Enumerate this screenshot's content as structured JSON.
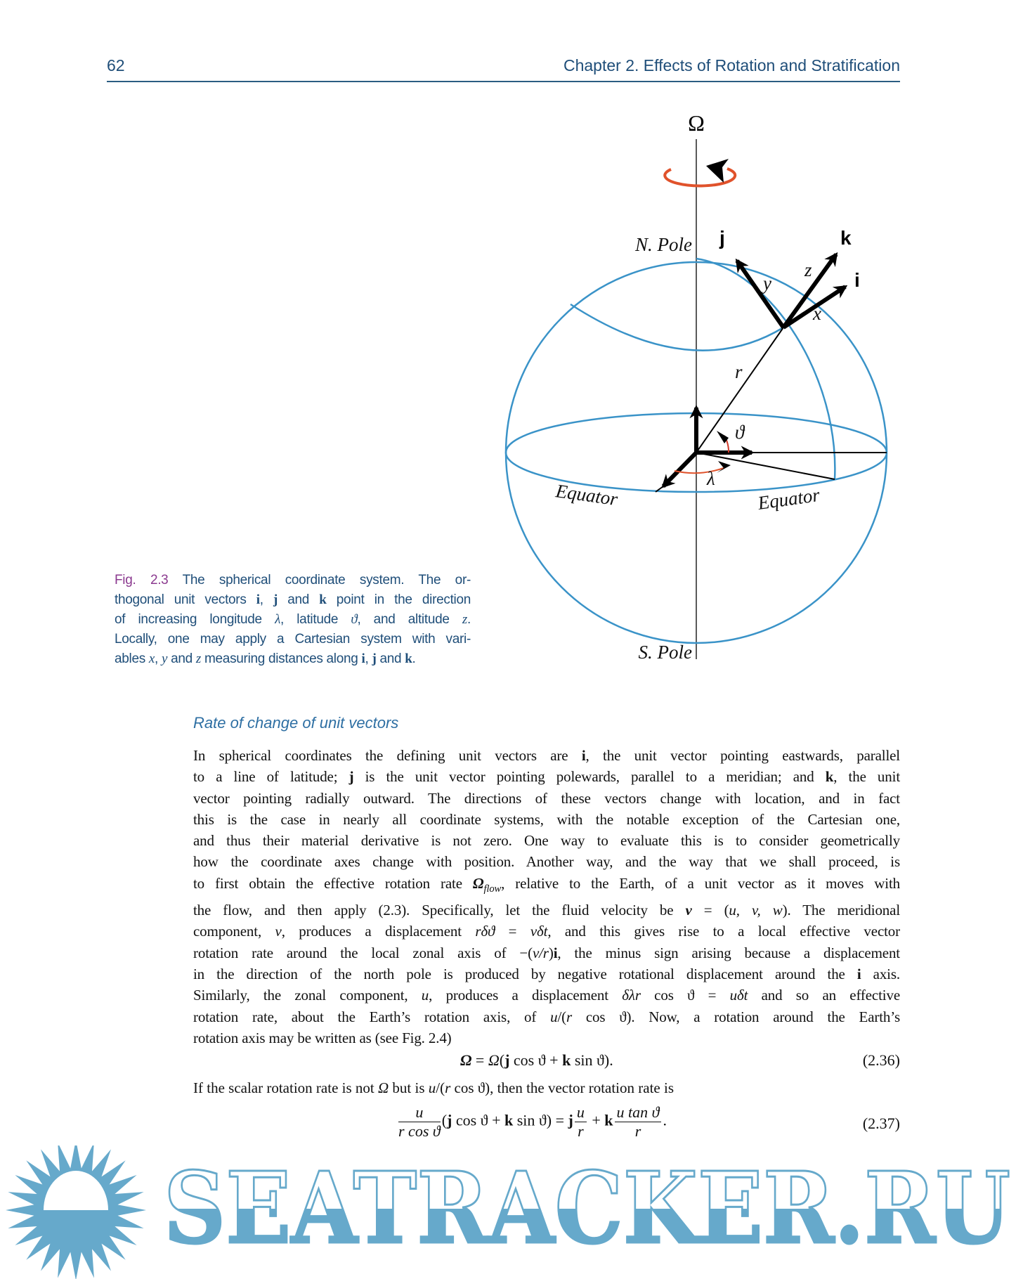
{
  "header": {
    "page_number": "62",
    "chapter_title": "Chapter 2.  Effects of Rotation and Stratification"
  },
  "figure": {
    "omega_label": "Ω",
    "n_pole_label": "N. Pole",
    "s_pole_label": "S. Pole",
    "equator_left_label": "Equator",
    "equator_right_label": "Equator",
    "vector_labels": {
      "i": "i",
      "j": "j",
      "k": "k"
    },
    "axis_labels": {
      "x": "x",
      "y": "y",
      "z": "z",
      "r": "r"
    },
    "angle_labels": {
      "latitude": "ϑ",
      "longitude": "λ"
    },
    "colors": {
      "globe": "#3a93c8",
      "rotation": "#e0522b",
      "angle_arc": "#d23a2a"
    }
  },
  "caption": {
    "lines": [
      [
        {
          "t": "Fig. 2.3",
          "s": "p"
        },
        {
          "t": "    The spherical coordinate system.  The or-",
          "s": ""
        }
      ],
      [
        {
          "t": "thogonal unit vectors ",
          "s": ""
        },
        {
          "t": "i",
          "s": "b"
        },
        {
          "t": ", ",
          "s": ""
        },
        {
          "t": "j",
          "s": "b"
        },
        {
          "t": " and ",
          "s": ""
        },
        {
          "t": "k",
          "s": "b"
        },
        {
          "t": " point in the direction",
          "s": ""
        }
      ],
      [
        {
          "t": "of increasing longitude ",
          "s": ""
        },
        {
          "t": "λ",
          "s": "i"
        },
        {
          "t": ", latitude ",
          "s": ""
        },
        {
          "t": "ϑ",
          "s": "i"
        },
        {
          "t": ", and altitude ",
          "s": ""
        },
        {
          "t": "z",
          "s": "i"
        },
        {
          "t": ".",
          "s": ""
        }
      ],
      [
        {
          "t": "Locally, one may apply a Cartesian system with vari-",
          "s": ""
        }
      ],
      [
        {
          "t": "ables ",
          "s": ""
        },
        {
          "t": "x",
          "s": "i"
        },
        {
          "t": ", ",
          "s": ""
        },
        {
          "t": "y",
          "s": "i"
        },
        {
          "t": " and ",
          "s": ""
        },
        {
          "t": "z",
          "s": "i"
        },
        {
          "t": " measuring distances along ",
          "s": ""
        },
        {
          "t": "i",
          "s": "b"
        },
        {
          "t": ", ",
          "s": ""
        },
        {
          "t": "j",
          "s": "b"
        },
        {
          "t": " and ",
          "s": ""
        },
        {
          "t": "k",
          "s": "b"
        },
        {
          "t": ".",
          "s": ""
        }
      ]
    ]
  },
  "section": {
    "title": "Rate of change of unit vectors"
  },
  "body": {
    "lines": [
      [
        {
          "t": "In spherical coordinates the defining unit vectors are ",
          "s": ""
        },
        {
          "t": "i",
          "s": "b"
        },
        {
          "t": ", the unit vector pointing eastwards, parallel",
          "s": ""
        }
      ],
      [
        {
          "t": "to a line of latitude; ",
          "s": ""
        },
        {
          "t": "j",
          "s": "b"
        },
        {
          "t": " is the unit vector pointing polewards, parallel to a meridian; and ",
          "s": ""
        },
        {
          "t": "k",
          "s": "b"
        },
        {
          "t": ", the unit",
          "s": ""
        }
      ],
      [
        {
          "t": "vector pointing radially outward. The directions of these vectors change with location, and in fact",
          "s": ""
        }
      ],
      [
        {
          "t": "this is the case in nearly all coordinate systems, with the notable exception of the Cartesian one,",
          "s": ""
        }
      ],
      [
        {
          "t": "and thus their material derivative is not zero. One way to evaluate this is to consider geometrically",
          "s": ""
        }
      ],
      [
        {
          "t": "how the coordinate axes change with position. Another way, and the way that we shall proceed, is",
          "s": ""
        }
      ],
      [
        {
          "t": "to first obtain the effective rotation rate ",
          "s": ""
        },
        {
          "t": "Ω",
          "s": "bi"
        },
        {
          "t": "flow",
          "s": "sub"
        },
        {
          "t": ", relative to the Earth, of a unit vector as it moves with",
          "s": ""
        }
      ],
      [
        {
          "t": "the flow, and then apply (2.3). Specifically, let the fluid velocity be ",
          "s": ""
        },
        {
          "t": "v",
          "s": "bi"
        },
        {
          "t": " = (",
          "s": ""
        },
        {
          "t": "u, v, w",
          "s": "i"
        },
        {
          "t": "). The meridional",
          "s": ""
        }
      ],
      [
        {
          "t": "component, ",
          "s": ""
        },
        {
          "t": "v",
          "s": "i"
        },
        {
          "t": ", produces a displacement ",
          "s": ""
        },
        {
          "t": "rδϑ",
          "s": "i"
        },
        {
          "t": " = ",
          "s": ""
        },
        {
          "t": "vδt",
          "s": "i"
        },
        {
          "t": ", and this gives rise to a local effective vector",
          "s": ""
        }
      ],
      [
        {
          "t": "rotation rate around the local zonal axis of −(",
          "s": ""
        },
        {
          "t": "v/r",
          "s": "i"
        },
        {
          "t": ")",
          "s": ""
        },
        {
          "t": "i",
          "s": "b"
        },
        {
          "t": ", the minus sign arising because a displacement",
          "s": ""
        }
      ],
      [
        {
          "t": "in the direction of the north pole is produced by negative rotational displacement around the ",
          "s": ""
        },
        {
          "t": "i",
          "s": "b"
        },
        {
          "t": " axis.",
          "s": ""
        }
      ],
      [
        {
          "t": "Similarly, the zonal component, ",
          "s": ""
        },
        {
          "t": "u",
          "s": "i"
        },
        {
          "t": ", produces a displacement ",
          "s": ""
        },
        {
          "t": "δλr",
          "s": "i"
        },
        {
          "t": " cos ϑ = ",
          "s": ""
        },
        {
          "t": "uδt",
          "s": "i"
        },
        {
          "t": " and so an effective",
          "s": ""
        }
      ],
      [
        {
          "t": "rotation rate, about the Earth’s rotation axis, of ",
          "s": ""
        },
        {
          "t": "u",
          "s": "i"
        },
        {
          "t": "/(",
          "s": ""
        },
        {
          "t": "r",
          "s": "i"
        },
        {
          "t": " cos ϑ).  Now, a rotation around the Earth’s",
          "s": ""
        }
      ],
      [
        {
          "t": "rotation axis may be written as (see Fig. 2.4)",
          "s": ""
        }
      ]
    ]
  },
  "equation_236": {
    "parts": [
      {
        "t": "Ω",
        "s": "bi"
      },
      {
        "t": " = ",
        "s": ""
      },
      {
        "t": "Ω",
        "s": "i"
      },
      {
        "t": "(",
        "s": ""
      },
      {
        "t": "j",
        "s": "b"
      },
      {
        "t": " cos ϑ + ",
        "s": ""
      },
      {
        "t": "k",
        "s": "b"
      },
      {
        "t": " sin ϑ).",
        "s": ""
      }
    ],
    "number": "(2.36)"
  },
  "paragraph_after": [
    {
      "t": "If the scalar rotation rate is not ",
      "s": ""
    },
    {
      "t": "Ω",
      "s": "i"
    },
    {
      "t": " but is ",
      "s": ""
    },
    {
      "t": "u",
      "s": "i"
    },
    {
      "t": "/(",
      "s": ""
    },
    {
      "t": "r",
      "s": "i"
    },
    {
      "t": " cos ϑ), then the vector rotation rate is",
      "s": ""
    }
  ],
  "equation_237": {
    "frac1_num": "u",
    "frac1_den": "r cos ϑ",
    "middle_1": "(",
    "j1": "j",
    "middle_2": " cos ϑ + ",
    "k1": "k",
    "middle_3": " sin ϑ) = ",
    "j2": "j",
    "frac2_num": "u",
    "frac2_den": "r",
    "plus": " + ",
    "k2": "k",
    "frac3_num": "u tan ϑ",
    "frac3_den": "r",
    "end": ".",
    "number": "(2.37)"
  },
  "watermark": {
    "text": "SEATRACKER.RU",
    "color": "#66a9cb"
  }
}
